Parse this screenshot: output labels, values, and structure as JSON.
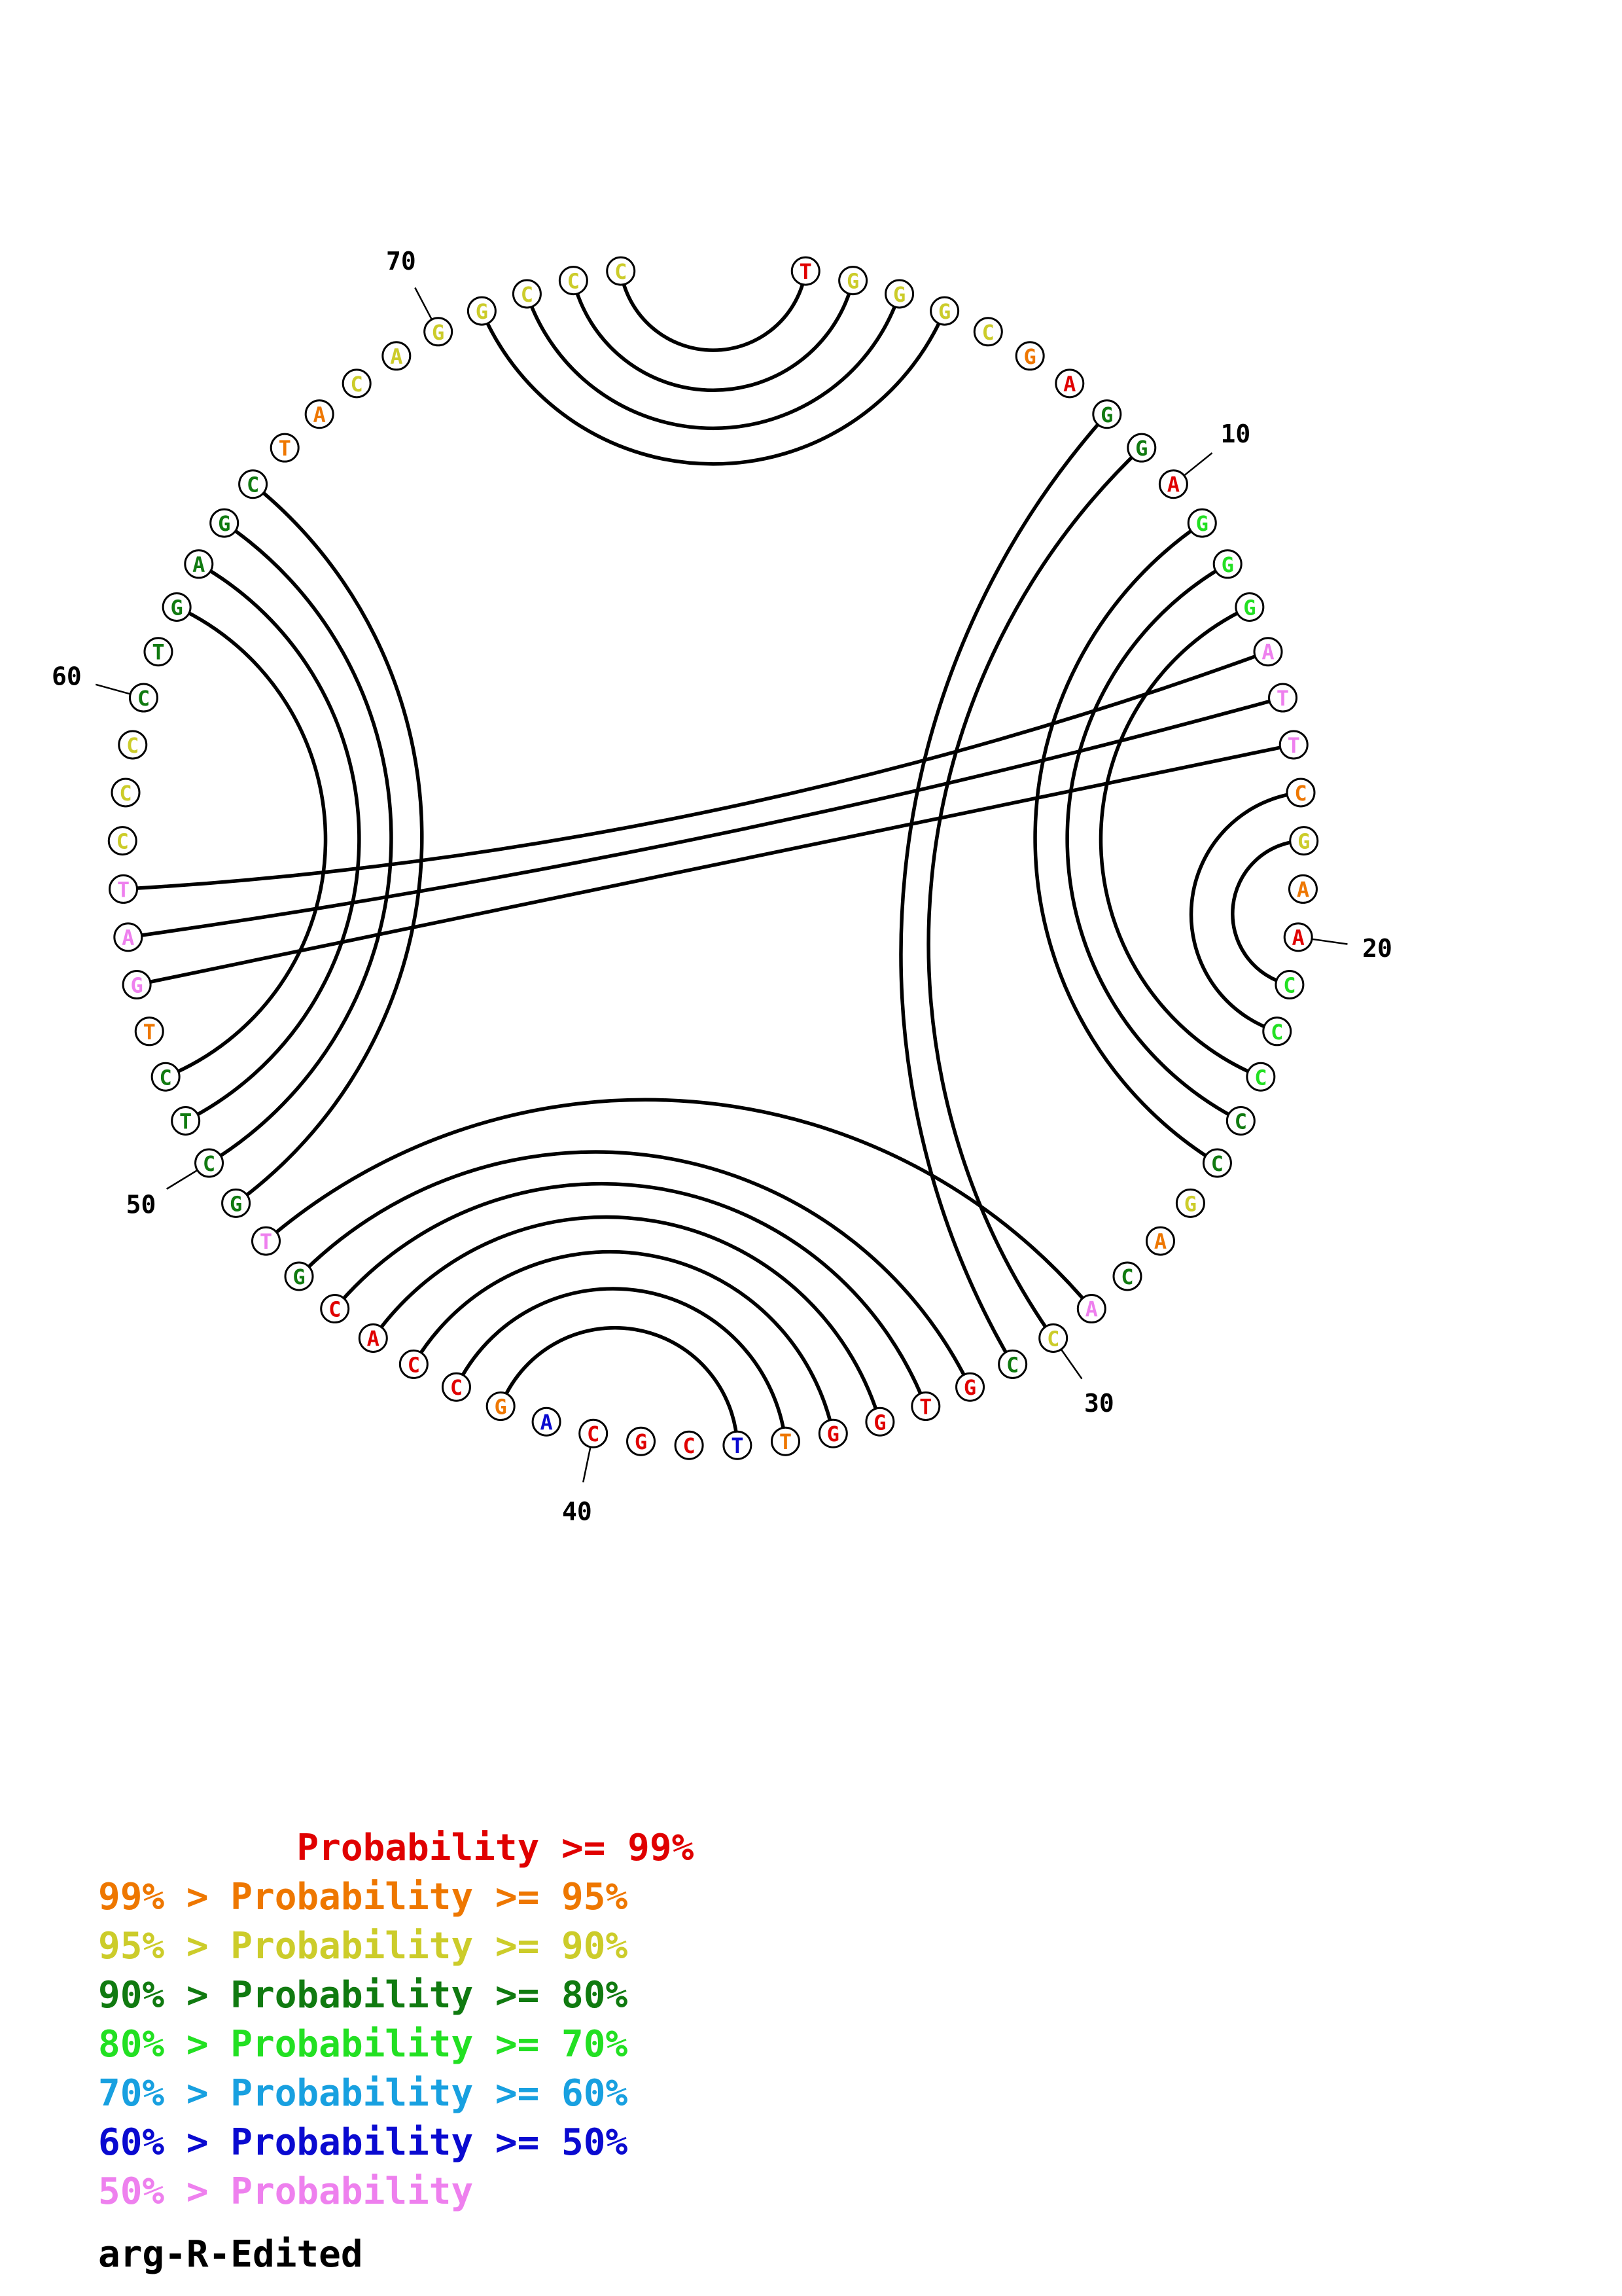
{
  "sequence_name": "arg-R-Edited",
  "colors": {
    "p99": "#e00000",
    "p95": "#ee7700",
    "p90": "#cccc2a",
    "p80": "#107a10",
    "p70": "#22e022",
    "p60": "#18a0e0",
    "p50": "#0a0ad0",
    "plow": "#ee80ee"
  },
  "nucleotides": [
    {
      "base": "T",
      "prob": "p99"
    },
    {
      "base": "G",
      "prob": "p90"
    },
    {
      "base": "G",
      "prob": "p90"
    },
    {
      "base": "G",
      "prob": "p90"
    },
    {
      "base": "C",
      "prob": "p90"
    },
    {
      "base": "G",
      "prob": "p95"
    },
    {
      "base": "A",
      "prob": "p99"
    },
    {
      "base": "G",
      "prob": "p80"
    },
    {
      "base": "G",
      "prob": "p80"
    },
    {
      "base": "A",
      "prob": "p99"
    },
    {
      "base": "G",
      "prob": "p70"
    },
    {
      "base": "G",
      "prob": "p70"
    },
    {
      "base": "G",
      "prob": "p70"
    },
    {
      "base": "A",
      "prob": "plow"
    },
    {
      "base": "T",
      "prob": "plow"
    },
    {
      "base": "T",
      "prob": "plow"
    },
    {
      "base": "C",
      "prob": "p95"
    },
    {
      "base": "G",
      "prob": "p90"
    },
    {
      "base": "A",
      "prob": "p95"
    },
    {
      "base": "A",
      "prob": "p99"
    },
    {
      "base": "C",
      "prob": "p70"
    },
    {
      "base": "C",
      "prob": "p70"
    },
    {
      "base": "C",
      "prob": "p70"
    },
    {
      "base": "C",
      "prob": "p80"
    },
    {
      "base": "C",
      "prob": "p80"
    },
    {
      "base": "G",
      "prob": "p90"
    },
    {
      "base": "A",
      "prob": "p95"
    },
    {
      "base": "C",
      "prob": "p80"
    },
    {
      "base": "A",
      "prob": "plow"
    },
    {
      "base": "C",
      "prob": "p90"
    },
    {
      "base": "C",
      "prob": "p80"
    },
    {
      "base": "G",
      "prob": "p99"
    },
    {
      "base": "T",
      "prob": "p99"
    },
    {
      "base": "G",
      "prob": "p99"
    },
    {
      "base": "G",
      "prob": "p99"
    },
    {
      "base": "T",
      "prob": "p95"
    },
    {
      "base": "T",
      "prob": "p50"
    },
    {
      "base": "C",
      "prob": "p99"
    },
    {
      "base": "G",
      "prob": "p99"
    },
    {
      "base": "C",
      "prob": "p99"
    },
    {
      "base": "A",
      "prob": "p50"
    },
    {
      "base": "G",
      "prob": "p95"
    },
    {
      "base": "C",
      "prob": "p99"
    },
    {
      "base": "C",
      "prob": "p99"
    },
    {
      "base": "A",
      "prob": "p99"
    },
    {
      "base": "C",
      "prob": "p99"
    },
    {
      "base": "G",
      "prob": "p80"
    },
    {
      "base": "T",
      "prob": "plow"
    },
    {
      "base": "G",
      "prob": "p80"
    },
    {
      "base": "C",
      "prob": "p80"
    },
    {
      "base": "T",
      "prob": "p80"
    },
    {
      "base": "C",
      "prob": "p80"
    },
    {
      "base": "T",
      "prob": "p95"
    },
    {
      "base": "G",
      "prob": "plow"
    },
    {
      "base": "A",
      "prob": "plow"
    },
    {
      "base": "T",
      "prob": "plow"
    },
    {
      "base": "C",
      "prob": "p90"
    },
    {
      "base": "C",
      "prob": "p90"
    },
    {
      "base": "C",
      "prob": "p90"
    },
    {
      "base": "C",
      "prob": "p80"
    },
    {
      "base": "T",
      "prob": "p80"
    },
    {
      "base": "G",
      "prob": "p80"
    },
    {
      "base": "A",
      "prob": "p80"
    },
    {
      "base": "G",
      "prob": "p80"
    },
    {
      "base": "C",
      "prob": "p80"
    },
    {
      "base": "T",
      "prob": "p95"
    },
    {
      "base": "A",
      "prob": "p95"
    },
    {
      "base": "C",
      "prob": "p90"
    },
    {
      "base": "A",
      "prob": "p90"
    },
    {
      "base": "G",
      "prob": "p90"
    },
    {
      "base": "G",
      "prob": "p90"
    },
    {
      "base": "C",
      "prob": "p90"
    },
    {
      "base": "C",
      "prob": "p90"
    },
    {
      "base": "C",
      "prob": "p90"
    }
  ],
  "pairs": [
    [
      1,
      74
    ],
    [
      2,
      73
    ],
    [
      3,
      72
    ],
    [
      4,
      71
    ],
    [
      8,
      31
    ],
    [
      9,
      30
    ],
    [
      11,
      25
    ],
    [
      12,
      24
    ],
    [
      13,
      23
    ],
    [
      14,
      56
    ],
    [
      15,
      55
    ],
    [
      16,
      54
    ],
    [
      17,
      22
    ],
    [
      18,
      21
    ],
    [
      29,
      48
    ],
    [
      32,
      47
    ],
    [
      33,
      46
    ],
    [
      34,
      45
    ],
    [
      35,
      44
    ],
    [
      36,
      43
    ],
    [
      37,
      42
    ],
    [
      49,
      65
    ],
    [
      50,
      64
    ],
    [
      51,
      63
    ],
    [
      52,
      62
    ]
  ],
  "position_labels": [
    {
      "index": 10,
      "text": "10"
    },
    {
      "index": 20,
      "text": "20"
    },
    {
      "index": 30,
      "text": "30"
    },
    {
      "index": 40,
      "text": "40"
    },
    {
      "index": 50,
      "text": "50"
    },
    {
      "index": 60,
      "text": "60"
    },
    {
      "index": 70,
      "text": "70"
    }
  ],
  "legend": [
    {
      "text": "         Probability >= 99%",
      "color": "p99"
    },
    {
      "text": "99% > Probability >= 95%",
      "color": "p95"
    },
    {
      "text": "95% > Probability >= 90%",
      "color": "p90"
    },
    {
      "text": "90% > Probability >= 80%",
      "color": "p80"
    },
    {
      "text": "80% > Probability >= 70%",
      "color": "p70"
    },
    {
      "text": "70% > Probability >= 60%",
      "color": "p60"
    },
    {
      "text": "60% > Probability >= 50%",
      "color": "p50"
    },
    {
      "text": "50% > Probability",
      "color": "plow"
    }
  ]
}
